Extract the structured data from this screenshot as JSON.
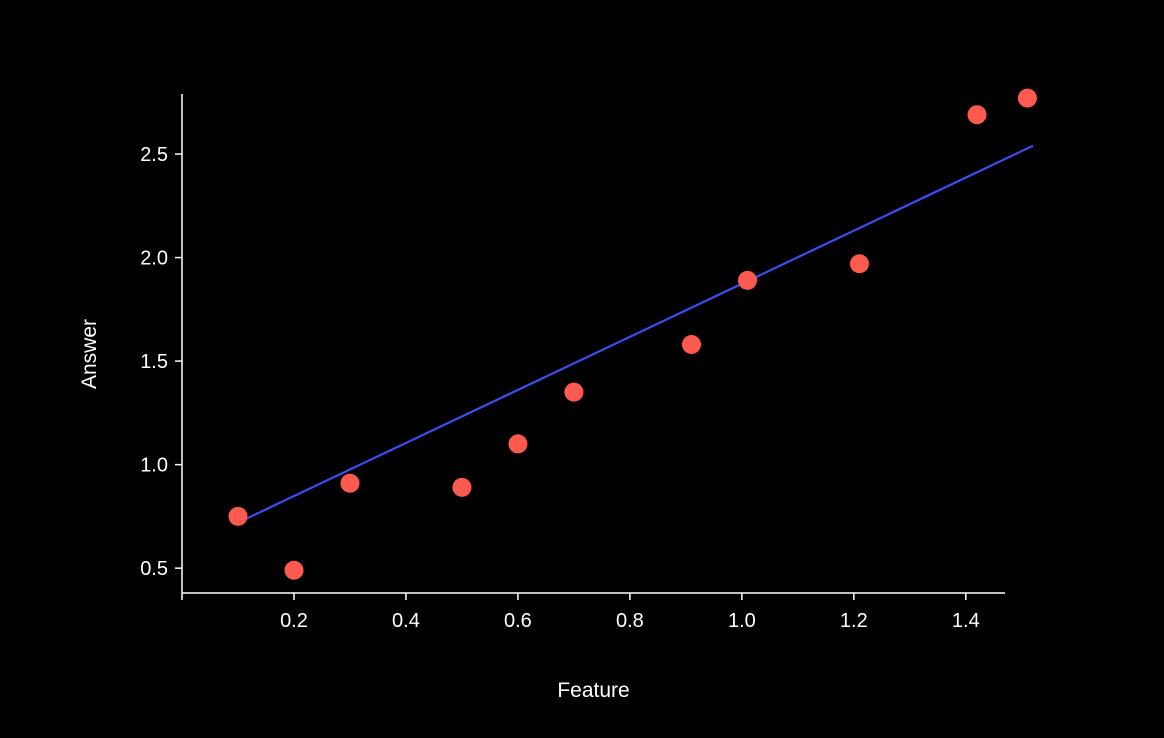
{
  "chart_data": {
    "type": "scatter",
    "title": "",
    "xlabel": "Feature",
    "ylabel": "Answer",
    "xlim": [
      0.0,
      1.47
    ],
    "ylim": [
      0.38,
      2.79
    ],
    "x_ticks": [
      {
        "value": 0.2,
        "label": "0.2"
      },
      {
        "value": 0.4,
        "label": "0.4"
      },
      {
        "value": 0.6,
        "label": "0.6"
      },
      {
        "value": 0.8,
        "label": "0.8"
      },
      {
        "value": 1.0,
        "label": "1.0"
      },
      {
        "value": 1.2,
        "label": "1.2"
      },
      {
        "value": 1.4,
        "label": "1.4"
      }
    ],
    "y_ticks": [
      {
        "value": 0.5,
        "label": "0.5"
      },
      {
        "value": 1.0,
        "label": "1.0"
      },
      {
        "value": 1.5,
        "label": "1.5"
      },
      {
        "value": 2.0,
        "label": "2.0"
      },
      {
        "value": 2.5,
        "label": "2.5"
      }
    ],
    "grid": false,
    "series": [
      {
        "type": "scatter",
        "color": "#ff5a4f",
        "points": [
          {
            "x": 0.1,
            "y": 0.75
          },
          {
            "x": 0.2,
            "y": 0.49
          },
          {
            "x": 0.3,
            "y": 0.91
          },
          {
            "x": 0.5,
            "y": 0.89
          },
          {
            "x": 0.6,
            "y": 1.1
          },
          {
            "x": 0.7,
            "y": 1.35
          },
          {
            "x": 0.91,
            "y": 1.58
          },
          {
            "x": 1.01,
            "y": 1.89
          },
          {
            "x": 1.21,
            "y": 1.97
          },
          {
            "x": 1.42,
            "y": 2.69
          },
          {
            "x": 1.51,
            "y": 2.77
          }
        ]
      },
      {
        "type": "line",
        "color": "#3b4ef2",
        "points": [
          {
            "x": 0.1,
            "y": 0.72
          },
          {
            "x": 1.52,
            "y": 2.54
          }
        ]
      }
    ]
  }
}
